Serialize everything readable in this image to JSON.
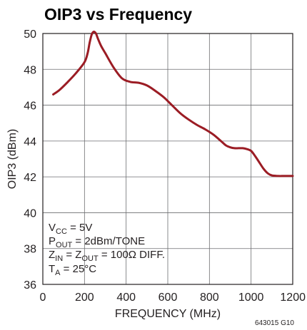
{
  "chart_data": {
    "type": "line",
    "title": "OIP3 vs Frequency",
    "xlabel": "FREQUENCY (MHz)",
    "ylabel": "OIP3 (dBm)",
    "xlim": [
      0,
      1200
    ],
    "ylim": [
      36,
      50
    ],
    "xticks": [
      0,
      200,
      400,
      600,
      800,
      1000,
      1200
    ],
    "yticks": [
      36,
      38,
      40,
      42,
      44,
      46,
      48,
      50
    ],
    "grid": true,
    "line_color": "#9b1c24",
    "series": [
      {
        "x": [
          50,
          80,
          120,
          160,
          200,
          215,
          225,
          235,
          245,
          255,
          265,
          280,
          300,
          340,
          380,
          420,
          460,
          500,
          540,
          580,
          620,
          660,
          700,
          740,
          780,
          820,
          860,
          880,
          900,
          920,
          940,
          960,
          980,
          1000,
          1020,
          1040,
          1060,
          1080,
          1100,
          1130,
          1160,
          1200
        ],
        "y": [
          46.6,
          46.85,
          47.3,
          47.8,
          48.4,
          48.9,
          49.5,
          49.95,
          50.1,
          50.0,
          49.7,
          49.3,
          48.9,
          48.1,
          47.5,
          47.3,
          47.25,
          47.1,
          46.8,
          46.45,
          46.0,
          45.55,
          45.2,
          44.9,
          44.65,
          44.35,
          43.95,
          43.75,
          43.65,
          43.6,
          43.6,
          43.6,
          43.55,
          43.45,
          43.15,
          42.8,
          42.45,
          42.2,
          42.08,
          42.05,
          42.05,
          42.05
        ]
      }
    ],
    "annotations": {
      "conditions": {
        "vcc": {
          "main": "V",
          "sub": "CC",
          "rest": " = 5V"
        },
        "pout": {
          "main": "P",
          "sub": "OUT",
          "rest": " = 2dBm/TONE"
        },
        "zin": {
          "main": "Z",
          "sub": "IN",
          "mid": " = Z",
          "sub2": "OUT",
          "rest": " = 100Ω DIFF."
        },
        "ta": {
          "main": "T",
          "sub": "A",
          "rest": " = 25°C"
        }
      },
      "figure_id": "643015 G10"
    }
  }
}
